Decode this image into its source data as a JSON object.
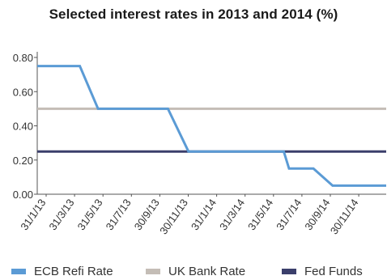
{
  "colors": {
    "ecb": "#5b9bd5",
    "uk": "#c4bdb6",
    "fed": "#3b3f6b",
    "axis": "#555555",
    "text": "#333333"
  },
  "chart_data": {
    "type": "line",
    "title": "Selected interest rates in 2013 and 2014 (%)",
    "xlabel": "",
    "ylabel": "",
    "ylim": [
      0,
      0.8
    ],
    "yticks": [
      "0.00",
      "0.20",
      "0.40",
      "0.60",
      "0.80"
    ],
    "ytick_values": [
      0,
      0.2,
      0.4,
      0.6,
      0.8
    ],
    "grid": false,
    "legend_position": "bottom",
    "xticks": [
      "31/1/13",
      "31/3/13",
      "31/5/13",
      "31/7/13",
      "30/9/13",
      "30/11/13",
      "31/1/14",
      "31/3/14",
      "31/5/14",
      "31/7/14",
      "30/9/14",
      "30/11/14"
    ],
    "x_range": [
      "2013-01-01",
      "2014-12-31"
    ],
    "series": [
      {
        "name": "ECB Refi Rate",
        "color_key": "ecb",
        "points": [
          [
            "2013-01-01",
            0.75
          ],
          [
            "2013-03-31",
            0.75
          ],
          [
            "2013-05-08",
            0.5
          ],
          [
            "2013-10-01",
            0.5
          ],
          [
            "2013-11-13",
            0.25
          ],
          [
            "2014-05-31",
            0.25
          ],
          [
            "2014-06-11",
            0.15
          ],
          [
            "2014-08-01",
            0.15
          ],
          [
            "2014-09-10",
            0.05
          ],
          [
            "2014-12-31",
            0.05
          ]
        ]
      },
      {
        "name": "UK Bank Rate",
        "color_key": "uk",
        "points": [
          [
            "2013-01-01",
            0.5
          ],
          [
            "2014-12-31",
            0.5
          ]
        ]
      },
      {
        "name": "Fed Funds",
        "color_key": "fed",
        "points": [
          [
            "2013-01-01",
            0.25
          ],
          [
            "2014-12-31",
            0.25
          ]
        ]
      }
    ]
  }
}
